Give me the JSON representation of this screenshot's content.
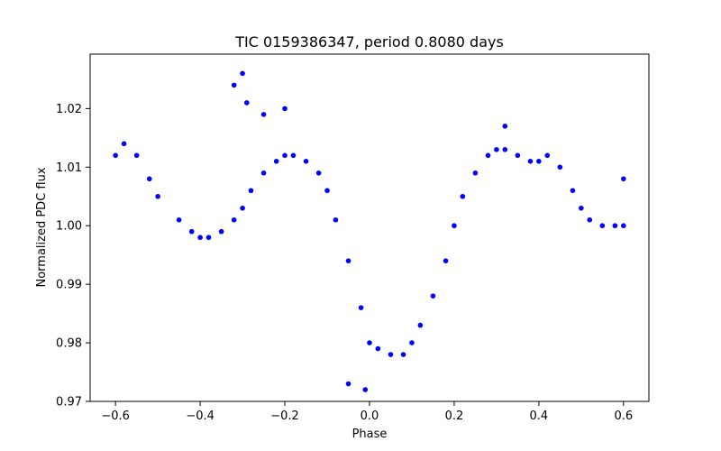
{
  "chart_data": {
    "type": "scatter",
    "title": "TIC 0159386347, period 0.8080 days",
    "xlabel": "Phase",
    "ylabel": "Normalized PDC flux",
    "xlim": [
      -0.66,
      0.66
    ],
    "ylim": [
      0.97,
      1.0293
    ],
    "xticks": [
      -0.6,
      -0.4,
      -0.2,
      0.0,
      0.2,
      0.4,
      0.6
    ],
    "xtick_labels": [
      "−0.6",
      "−0.4",
      "−0.2",
      "0.0",
      "0.2",
      "0.4",
      "0.6"
    ],
    "yticks": [
      0.97,
      0.98,
      0.99,
      1.0,
      1.01,
      1.02
    ],
    "ytick_labels": [
      "0.97",
      "0.98",
      "0.99",
      "1.00",
      "1.01",
      "1.02"
    ],
    "grid": false,
    "marker_color": "#0000ff",
    "series": [
      {
        "name": "",
        "x": [
          -0.6,
          -0.58,
          -0.55,
          -0.52,
          -0.5,
          -0.45,
          -0.42,
          -0.4,
          -0.38,
          -0.35,
          -0.32,
          -0.3,
          -0.28,
          -0.25,
          -0.22,
          -0.2,
          -0.18,
          -0.15,
          -0.12,
          -0.1,
          -0.08,
          -0.05,
          -0.02,
          0.0,
          0.02,
          0.05,
          0.08,
          0.1,
          0.12,
          0.15,
          0.18,
          0.2,
          0.22,
          0.25,
          0.28,
          0.3,
          0.32,
          0.35,
          0.38,
          0.4,
          0.42,
          0.45,
          0.48,
          0.5,
          0.52,
          0.55,
          0.58,
          0.6,
          -0.3,
          -0.32,
          -0.29,
          -0.2,
          -0.25,
          -0.05,
          0.32,
          0.6,
          -0.01
        ],
        "y": [
          1.012,
          1.014,
          1.012,
          1.008,
          1.005,
          1.001,
          0.999,
          0.998,
          0.998,
          0.999,
          1.001,
          1.003,
          1.006,
          1.009,
          1.011,
          1.012,
          1.012,
          1.011,
          1.009,
          1.006,
          1.001,
          0.994,
          0.986,
          0.98,
          0.979,
          0.978,
          0.978,
          0.98,
          0.983,
          0.988,
          0.994,
          1.0,
          1.005,
          1.009,
          1.012,
          1.013,
          1.013,
          1.012,
          1.011,
          1.011,
          1.012,
          1.01,
          1.006,
          1.003,
          1.001,
          1.0,
          1.0,
          1.0,
          1.026,
          1.024,
          1.021,
          1.02,
          1.019,
          0.973,
          1.017,
          1.008,
          0.972
        ]
      }
    ]
  }
}
